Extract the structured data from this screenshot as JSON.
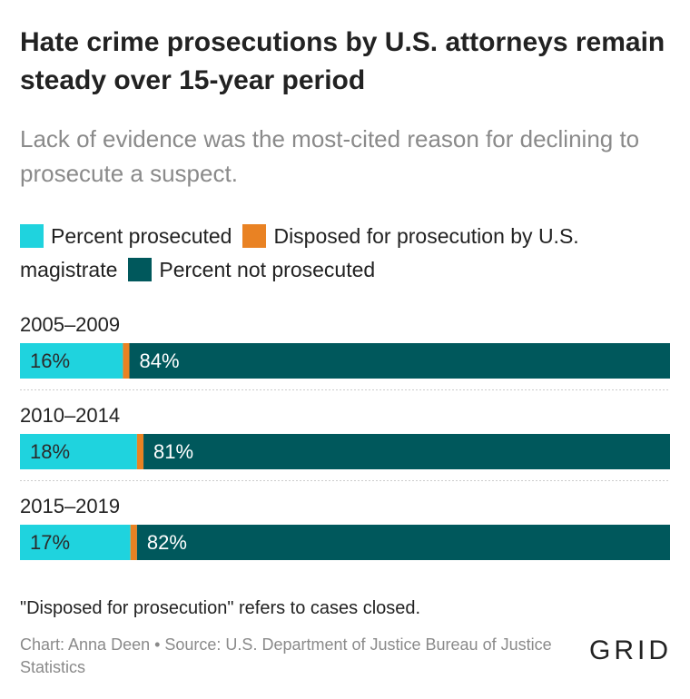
{
  "header": {
    "title": "Hate crime prosecutions by U.S. attorneys remain steady over 15-year period",
    "subtitle": "Lack of evidence was the most-cited reason for declining to prosecute a suspect."
  },
  "legend": [
    {
      "label": "Percent prosecuted",
      "color": "#1fd3de"
    },
    {
      "label": "Disposed for prosecution by U.S. magistrate",
      "color": "#e98223"
    },
    {
      "label": "Percent not prosecuted",
      "color": "#00585c"
    }
  ],
  "chart_data": {
    "type": "bar",
    "orientation": "horizontal",
    "stacked": true,
    "normalized": true,
    "categories": [
      "2005–2009",
      "2010–2014",
      "2015–2019"
    ],
    "series": [
      {
        "name": "Percent prosecuted",
        "color": "#1fd3de",
        "label_color": "#2b2b2b",
        "values": [
          16,
          18,
          17
        ],
        "labels": [
          "16%",
          "18%",
          "17%"
        ]
      },
      {
        "name": "Disposed for prosecution by U.S. magistrate",
        "color": "#e98223",
        "label_color": "#2b2b2b",
        "values": [
          1,
          1,
          1
        ],
        "labels": [
          "",
          "",
          ""
        ]
      },
      {
        "name": "Percent not prosecuted",
        "color": "#00585c",
        "label_color": "#ffffff",
        "values": [
          84,
          81,
          82
        ],
        "labels": [
          "84%",
          "81%",
          "82%"
        ]
      }
    ]
  },
  "footer": {
    "note": "\"Disposed for prosecution\" refers to cases closed.",
    "source": "Chart: Anna Deen • Source: U.S. Department of Justice Bureau of Justice Statistics",
    "logo": "GRID"
  }
}
